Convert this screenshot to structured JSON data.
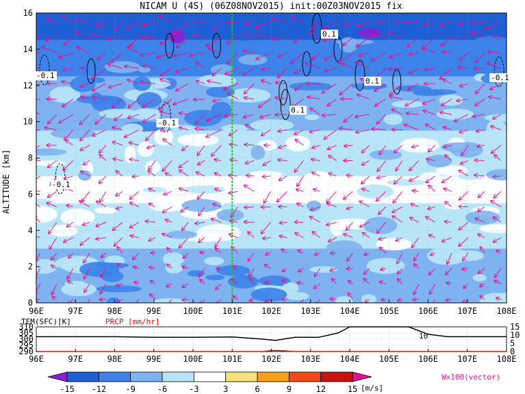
{
  "chart_data": [
    {
      "type": "heatmap",
      "title": "NICAM U (4S) (06Z08NOV2015) init:00Z03NOV2015 fix",
      "xlabel": "",
      "ylabel": "ALTITUDE [km]",
      "xlim": [
        96,
        108
      ],
      "ylim": [
        0,
        16
      ],
      "x_ticks": [
        "96E",
        "97E",
        "98E",
        "99E",
        "100E",
        "101E",
        "102E",
        "103E",
        "104E",
        "105E",
        "106E",
        "107E",
        "108E"
      ],
      "y_ticks": [
        "0",
        "2",
        "4",
        "6",
        "8",
        "10",
        "12",
        "14",
        "16"
      ],
      "grid": true,
      "marker_line_lon": 101,
      "u_bands_m_per_s": [
        {
          "alt_from": 14.5,
          "alt_to": 16,
          "u": -15
        },
        {
          "alt_from": 12.5,
          "alt_to": 14.5,
          "u": -12
        },
        {
          "alt_from": 9.5,
          "alt_to": 12.5,
          "u": -9
        },
        {
          "alt_from": 7.0,
          "alt_to": 9.5,
          "u": -6
        },
        {
          "alt_from": 5.5,
          "alt_to": 7.0,
          "u": 0
        },
        {
          "alt_from": 3.0,
          "alt_to": 5.5,
          "u": -4
        },
        {
          "alt_from": 0,
          "alt_to": 3.0,
          "u": -7
        }
      ],
      "w_contour_labels": [
        {
          "text": "0.1",
          "lon": 103.3,
          "alt": 14.7
        },
        {
          "text": "-0.1",
          "lon": 96.0,
          "alt": 12.4
        },
        {
          "text": "0.1",
          "lon": 104.4,
          "alt": 12.1
        },
        {
          "text": "-0.1",
          "lon": 107.6,
          "alt": 12.3
        },
        {
          "text": "0.1",
          "lon": 102.5,
          "alt": 10.5
        },
        {
          "text": "-0.1",
          "lon": 99.1,
          "alt": 9.8
        },
        {
          "text": "-0.1",
          "lon": 96.4,
          "alt": 6.4
        }
      ]
    },
    {
      "type": "line",
      "series_labels": [
        "TEM(SFC)[K]",
        "PRCP [mm/hr]"
      ],
      "left_axis": {
        "ylim": [
          290,
          310
        ],
        "ticks": [
          "310",
          "305",
          "300",
          "295",
          "290"
        ]
      },
      "right_axis": {
        "ylim": [
          0,
          15
        ],
        "ticks": [
          "15",
          "10",
          "5",
          "0"
        ]
      },
      "x_ticks": [
        "96E",
        "97E",
        "98E",
        "99E",
        "100E",
        "101E",
        "102E",
        "103E",
        "104E",
        "105E",
        "106E",
        "107E",
        "108E"
      ],
      "series": [
        {
          "name": "TEM(SFC)[K]",
          "x": [
            96,
            97,
            98,
            99,
            100,
            101,
            101.8,
            102.1,
            102.6,
            103.2,
            103.7,
            104,
            105.5,
            106,
            106.5,
            108
          ],
          "values": [
            302,
            302,
            302,
            301.5,
            301.5,
            301.8,
            300,
            299,
            301.5,
            301.5,
            305,
            310,
            310,
            304,
            302,
            302
          ]
        },
        {
          "name": "PRCP [mm/hr]",
          "x": [
            96,
            101.8,
            102,
            102.2,
            102.6,
            108
          ],
          "values": [
            0,
            0,
            0.6,
            0.6,
            0,
            0
          ]
        }
      ],
      "annotation": "10"
    }
  ],
  "colorbar": {
    "ticks": [
      "-15",
      "-12",
      "-9",
      "-6",
      "-3",
      "3",
      "6",
      "9",
      "12",
      "15"
    ],
    "unit": "[m/s]",
    "vector_scale_label": "Wx100(vector)",
    "colors": [
      "#8c1fd4",
      "#1f5fd6",
      "#3c82e8",
      "#7fb2f0",
      "#b8e6f8",
      "#ffffff",
      "#f6e27a",
      "#f6a11a",
      "#ee4a1a",
      "#c4160f",
      "#e4118e"
    ]
  },
  "colors": {
    "vector": "#e4118e",
    "marker_line": "#22bb22",
    "precip": "#ff0000"
  }
}
